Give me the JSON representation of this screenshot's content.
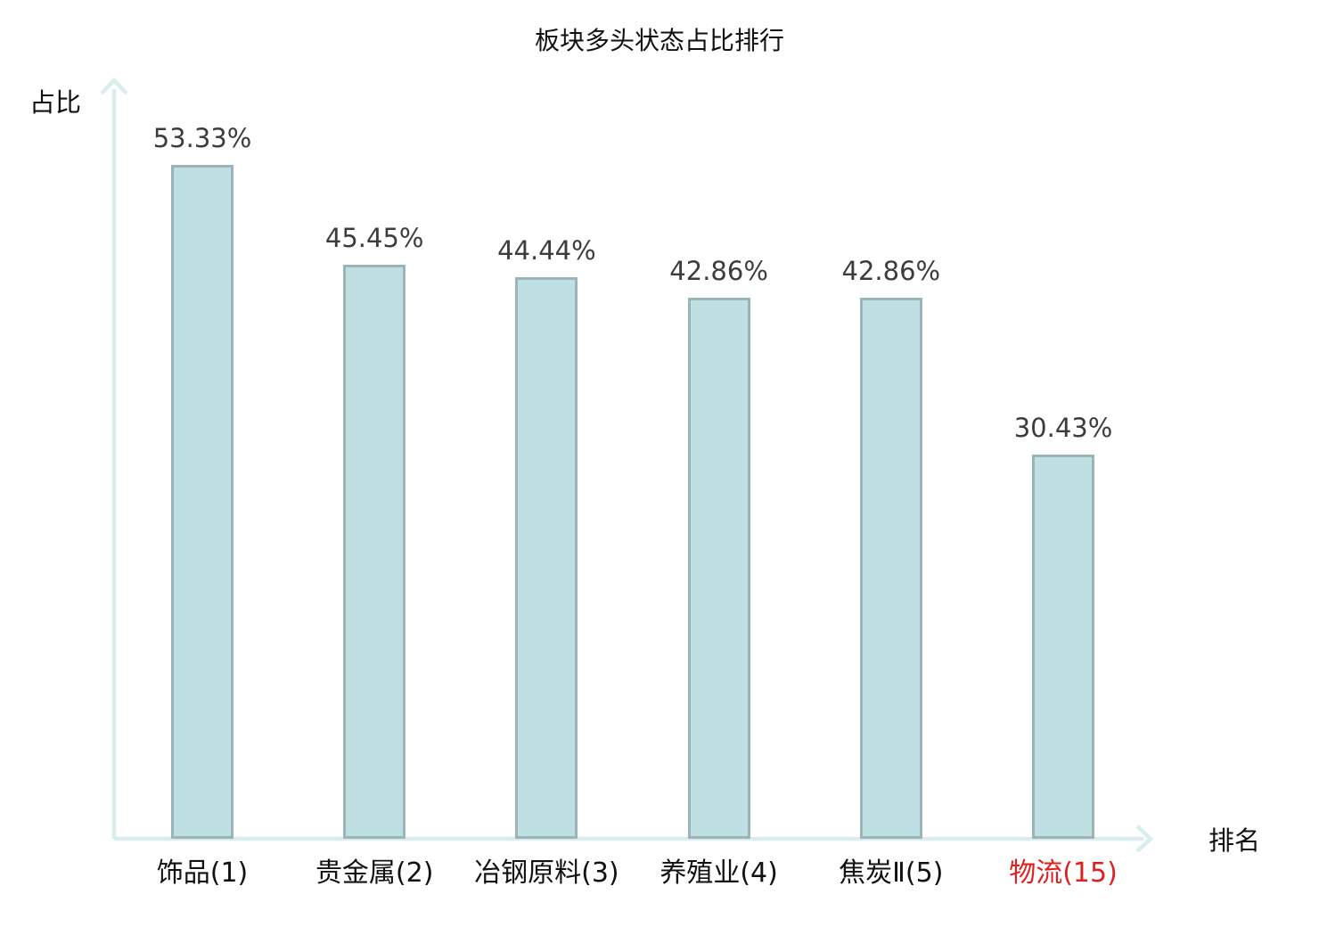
{
  "chart_data": {
    "type": "bar",
    "title": "板块多头状态占比排行",
    "ylabel": "占比",
    "xlabel": "排名",
    "categories": [
      "饰品(1)",
      "贵金属(2)",
      "冶钢原料(3)",
      "养殖业(4)",
      "焦炭Ⅱ(5)",
      "物流(15)"
    ],
    "values": [
      53.33,
      45.45,
      44.44,
      42.86,
      42.86,
      30.43
    ],
    "value_labels": [
      "53.33%",
      "45.45%",
      "44.44%",
      "42.86%",
      "42.86%",
      "30.43%"
    ],
    "highlight_index": 5,
    "ylim": [
      0,
      60
    ],
    "grid": false,
    "legend_position": "none",
    "colors": {
      "bar_fill": "#bee0e3",
      "bar_border": "#9ab4b8",
      "axis": "#d9edef",
      "value_label": "#3c3c3c",
      "category_label": "#111111",
      "highlight_label": "#e01f1f",
      "title": "#111111"
    }
  }
}
